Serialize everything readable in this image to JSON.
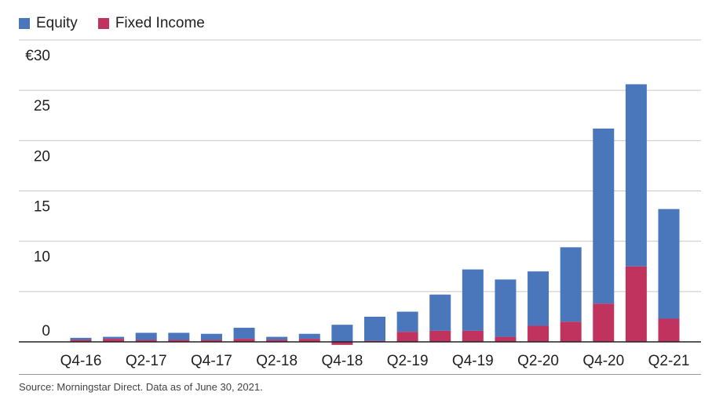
{
  "chart_data": {
    "type": "bar",
    "stacked": true,
    "categories": [
      "Q4-16",
      "Q1-17",
      "Q2-17",
      "Q3-17",
      "Q4-17",
      "Q1-18",
      "Q2-18",
      "Q3-18",
      "Q4-18",
      "Q1-19",
      "Q2-19",
      "Q3-19",
      "Q4-19",
      "Q1-20",
      "Q2-20",
      "Q3-20",
      "Q4-20",
      "Q1-21",
      "Q2-21"
    ],
    "xtick_labels": [
      "Q4-16",
      "",
      "Q2-17",
      "",
      "Q4-17",
      "",
      "Q2-18",
      "",
      "Q4-18",
      "",
      "Q2-19",
      "",
      "Q4-19",
      "",
      "Q2-20",
      "",
      "Q4-20",
      "",
      "Q2-21"
    ],
    "series": [
      {
        "name": "Fixed Income",
        "color": "#c0335f",
        "values": [
          0.2,
          0.3,
          0.2,
          0.2,
          0.2,
          0.3,
          0.2,
          0.3,
          -0.3,
          0.1,
          1.0,
          1.1,
          1.1,
          0.5,
          1.6,
          2.0,
          3.8,
          7.5,
          2.3
        ]
      },
      {
        "name": "Equity",
        "color": "#4a76bb",
        "values": [
          0.2,
          0.2,
          0.7,
          0.7,
          0.6,
          1.1,
          0.3,
          0.5,
          1.7,
          2.4,
          2.0,
          3.6,
          6.1,
          5.7,
          5.4,
          7.4,
          17.4,
          18.1,
          10.9
        ]
      }
    ],
    "ylim": [
      0,
      30
    ],
    "yticks": [
      0,
      5,
      10,
      15,
      20,
      25,
      30
    ],
    "ytick_labels": [
      "0",
      "",
      "10",
      "15",
      "20",
      "25",
      "€30"
    ],
    "grid": true,
    "legend": "top-left"
  },
  "legend": {
    "items": [
      {
        "label": "Equity",
        "color": "#4a76bb"
      },
      {
        "label": "Fixed Income",
        "color": "#c0335f"
      }
    ]
  },
  "source": "Source: Morningstar Direct. Data as of June 30, 2021."
}
